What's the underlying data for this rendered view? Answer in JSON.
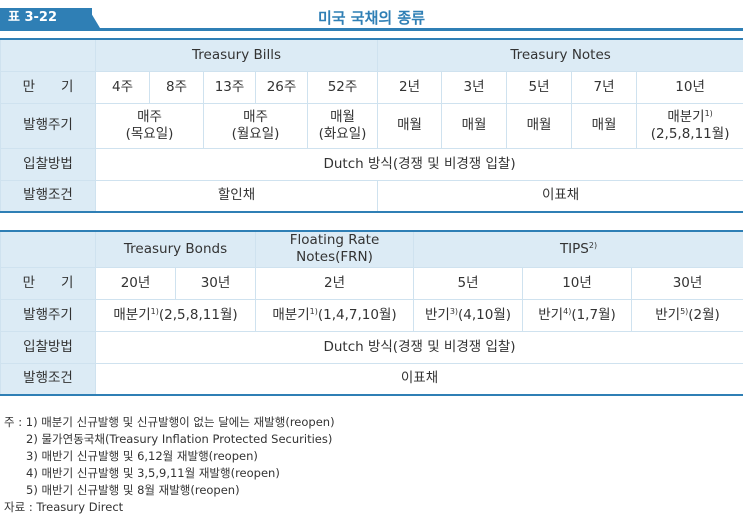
{
  "header": {
    "tag": "표 3-22",
    "title": "미국 국채의 종류"
  },
  "table1": {
    "groups": [
      "Treasury Bills",
      "Treasury Notes"
    ],
    "maturity_label": "만 기",
    "maturity_label_parts": [
      "만",
      "기"
    ],
    "maturities": [
      "4주",
      "8주",
      "13주",
      "26주",
      "52주",
      "2년",
      "3년",
      "5년",
      "7년",
      "10년"
    ],
    "issue_cycle_label": "발행주기",
    "issue_cycles": [
      {
        "text": "매주\n(목요일)"
      },
      {
        "text": "매주\n(월요일)"
      },
      {
        "text": "매월\n(화요일)"
      },
      {
        "text": "매월"
      },
      {
        "text": "매월"
      },
      {
        "text": "매월"
      },
      {
        "text": "매월"
      },
      {
        "line1": "매분기",
        "sup": "1)",
        "line2": "(2,5,8,11월)"
      }
    ],
    "bidding_label": "입찰방법",
    "bidding": "Dutch 방식(경쟁 및 비경쟁 입찰)",
    "condition_label": "발행조건",
    "conditions": [
      "할인채",
      "이표채"
    ]
  },
  "table2": {
    "groups": [
      "Treasury Bonds",
      "Floating Rate\nNotes(FRN)",
      "TIPS"
    ],
    "tips_sup": "2)",
    "maturity_label_parts": [
      "만",
      "기"
    ],
    "maturities": [
      "20년",
      "30년",
      "2년",
      "5년",
      "10년",
      "30년"
    ],
    "issue_cycle_label": "발행주기",
    "issue_cycles": [
      {
        "pre": "매분기",
        "sup": "1)",
        "post": "(2,5,8,11월)"
      },
      {
        "pre": "매분기",
        "sup": "1)",
        "post": "(1,4,7,10월)"
      },
      {
        "pre": "반기",
        "sup": "3)",
        "post": "(4,10월)"
      },
      {
        "pre": "반기",
        "sup": "4)",
        "post": "(1,7월)"
      },
      {
        "pre": "반기",
        "sup": "5)",
        "post": "(2월)"
      }
    ],
    "bidding_label": "입찰방법",
    "bidding": "Dutch 방식(경쟁 및 비경쟁 입찰)",
    "condition_label": "발행조건",
    "condition": "이표채"
  },
  "notes": {
    "lines": [
      "주 : 1) 매분기 신규발행 및 신규발행이 없는 달에는 재발행(reopen)",
      "2) 물가연동국채(Treasury Inflation Protected Securities)",
      "3) 매반기 신규발행 및 6,12월 재발행(reopen)",
      "4) 매반기 신규발행 및 3,5,9,11월 재발행(reopen)",
      "5) 매반기 신규발행 및 8월 재발행(reopen)"
    ],
    "source": "자료 : Treasury Direct"
  },
  "colors": {
    "accent": "#2f7fb5",
    "header_fill": "#dcebf5",
    "border": "#cfe2ef"
  }
}
